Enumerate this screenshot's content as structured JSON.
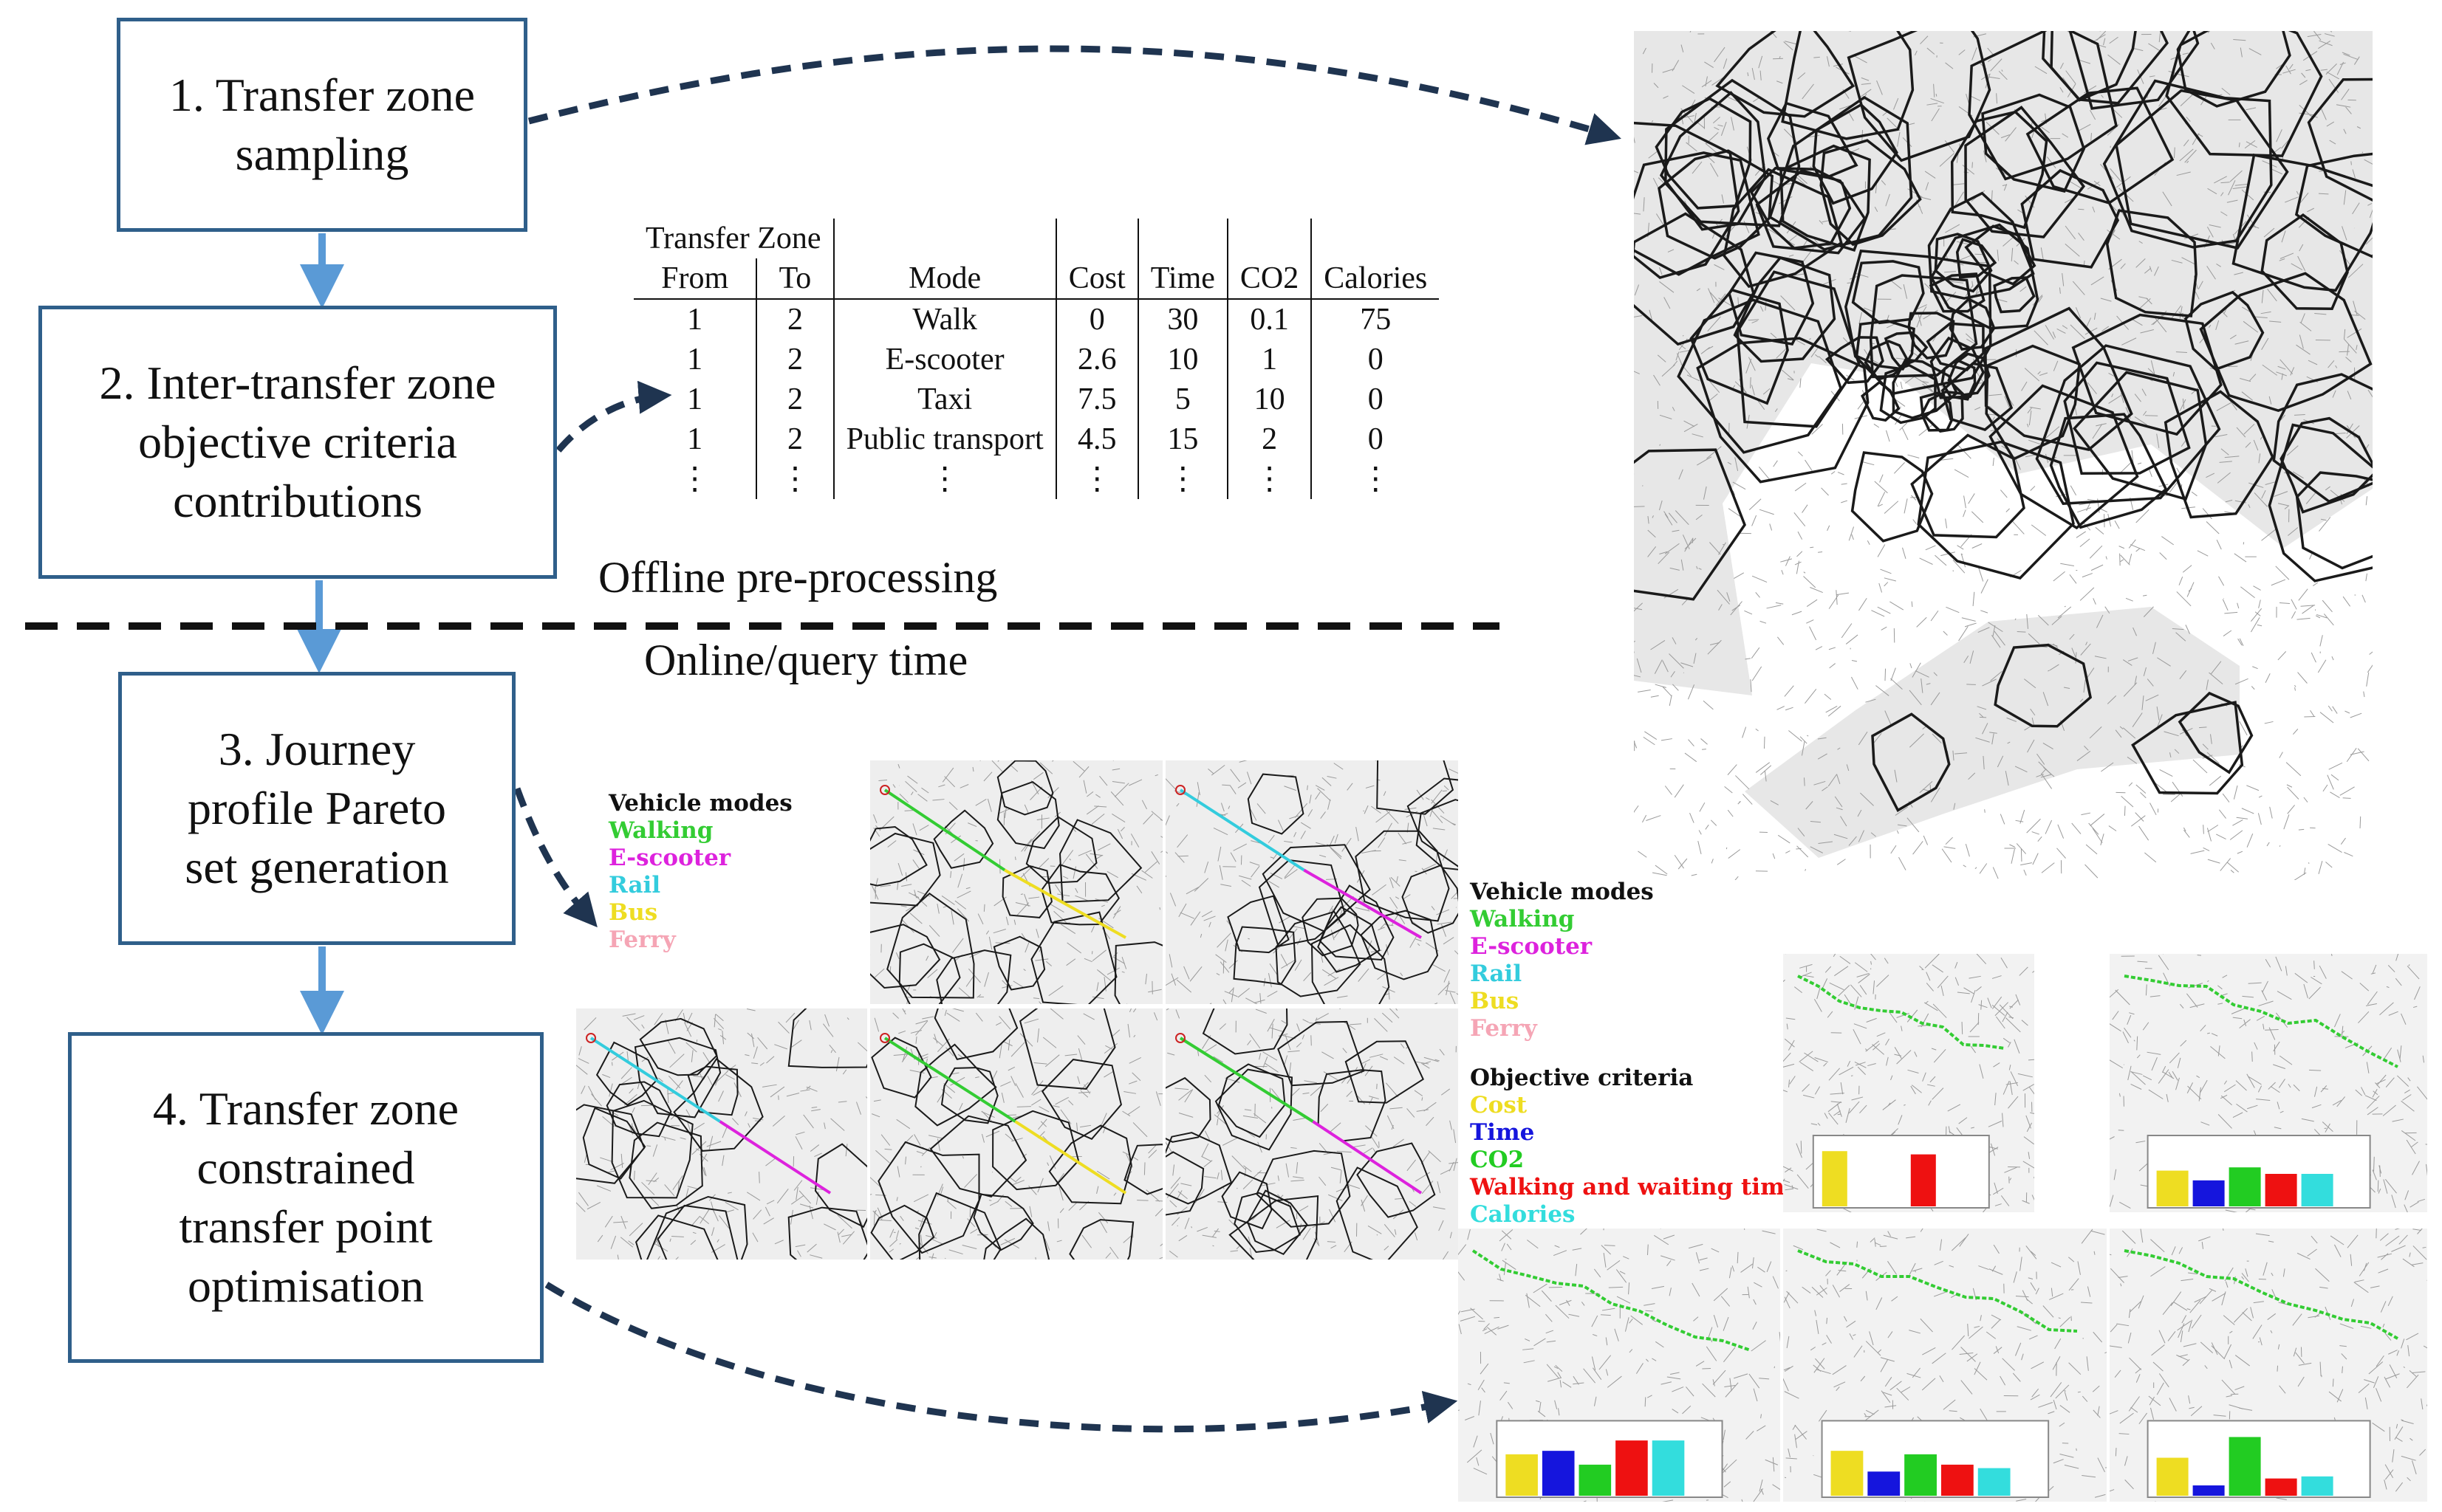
{
  "steps": [
    {
      "label": "1. Transfer zone\nsampling"
    },
    {
      "label": "2. Inter-transfer zone\nobjective criteria\ncontributions"
    },
    {
      "label": "3. Journey\nprofile Pareto\nset generation"
    },
    {
      "label": "4. Transfer zone\nconstrained\ntransfer point\noptimisation"
    }
  ],
  "phases": {
    "offline": "Offline pre-processing",
    "online": "Online/query time"
  },
  "table": {
    "group_header": "Transfer Zone",
    "columns": [
      "From",
      "To",
      "Mode",
      "Cost",
      "Time",
      "CO2",
      "Calories"
    ],
    "rows": [
      [
        "1",
        "2",
        "Walk",
        "0",
        "30",
        "0.1",
        "75"
      ],
      [
        "1",
        "2",
        "E-scooter",
        "2.6",
        "10",
        "1",
        "0"
      ],
      [
        "1",
        "2",
        "Taxi",
        "7.5",
        "5",
        "10",
        "0"
      ],
      [
        "1",
        "2",
        "Public transport",
        "4.5",
        "15",
        "2",
        "0"
      ],
      [
        "⋮",
        "⋮",
        "⋮",
        "⋮",
        "⋮",
        "⋮",
        "⋮"
      ]
    ]
  },
  "vehicle_legend": {
    "title": "Vehicle modes",
    "items": [
      {
        "label": "Walking",
        "color": "#33cc33"
      },
      {
        "label": "E-scooter",
        "color": "#dd22dd"
      },
      {
        "label": "Rail",
        "color": "#33ccdd"
      },
      {
        "label": "Bus",
        "color": "#eedd22"
      },
      {
        "label": "Ferry",
        "color": "#f5a5b5"
      }
    ]
  },
  "criteria_legend": {
    "title": "Objective criteria",
    "items": [
      {
        "label": "Cost",
        "color": "#eedd22"
      },
      {
        "label": "Time",
        "color": "#1515dd"
      },
      {
        "label": "CO2",
        "color": "#22cc22"
      },
      {
        "label": "Walking and waiting time",
        "color": "#ee1111"
      },
      {
        "label": "Calories",
        "color": "#33dddd"
      }
    ]
  },
  "pareto_panels": [
    {
      "segments": [
        {
          "mode": "Walking",
          "color": "#33cc33"
        },
        {
          "mode": "Bus",
          "color": "#eedd22"
        }
      ]
    },
    {
      "segments": [
        {
          "mode": "Rail",
          "color": "#33ccdd"
        },
        {
          "mode": "E-scooter",
          "color": "#dd22dd"
        }
      ]
    },
    {
      "segments": [
        {
          "mode": "Rail",
          "color": "#33ccdd"
        },
        {
          "mode": "E-scooter",
          "color": "#dd22dd"
        }
      ]
    },
    {
      "segments": [
        {
          "mode": "Walking",
          "color": "#33cc33"
        },
        {
          "mode": "Bus",
          "color": "#eedd22"
        }
      ]
    },
    {
      "segments": [
        {
          "mode": "Walking",
          "color": "#33cc33"
        },
        {
          "mode": "E-scooter",
          "color": "#dd22dd"
        }
      ]
    }
  ],
  "optimised_panels": [
    {
      "bars": [
        0.85,
        0,
        0,
        0.8,
        0
      ]
    },
    {
      "bars": [
        0.55,
        0.4,
        0.6,
        0.5,
        0.5
      ]
    },
    {
      "bars": [
        0.6,
        0.65,
        0.45,
        0.8,
        0.8
      ]
    },
    {
      "bars": [
        0.65,
        0.35,
        0.6,
        0.45,
        0.4
      ]
    },
    {
      "bars": [
        0.55,
        0.15,
        0.85,
        0.25,
        0.28
      ]
    }
  ]
}
